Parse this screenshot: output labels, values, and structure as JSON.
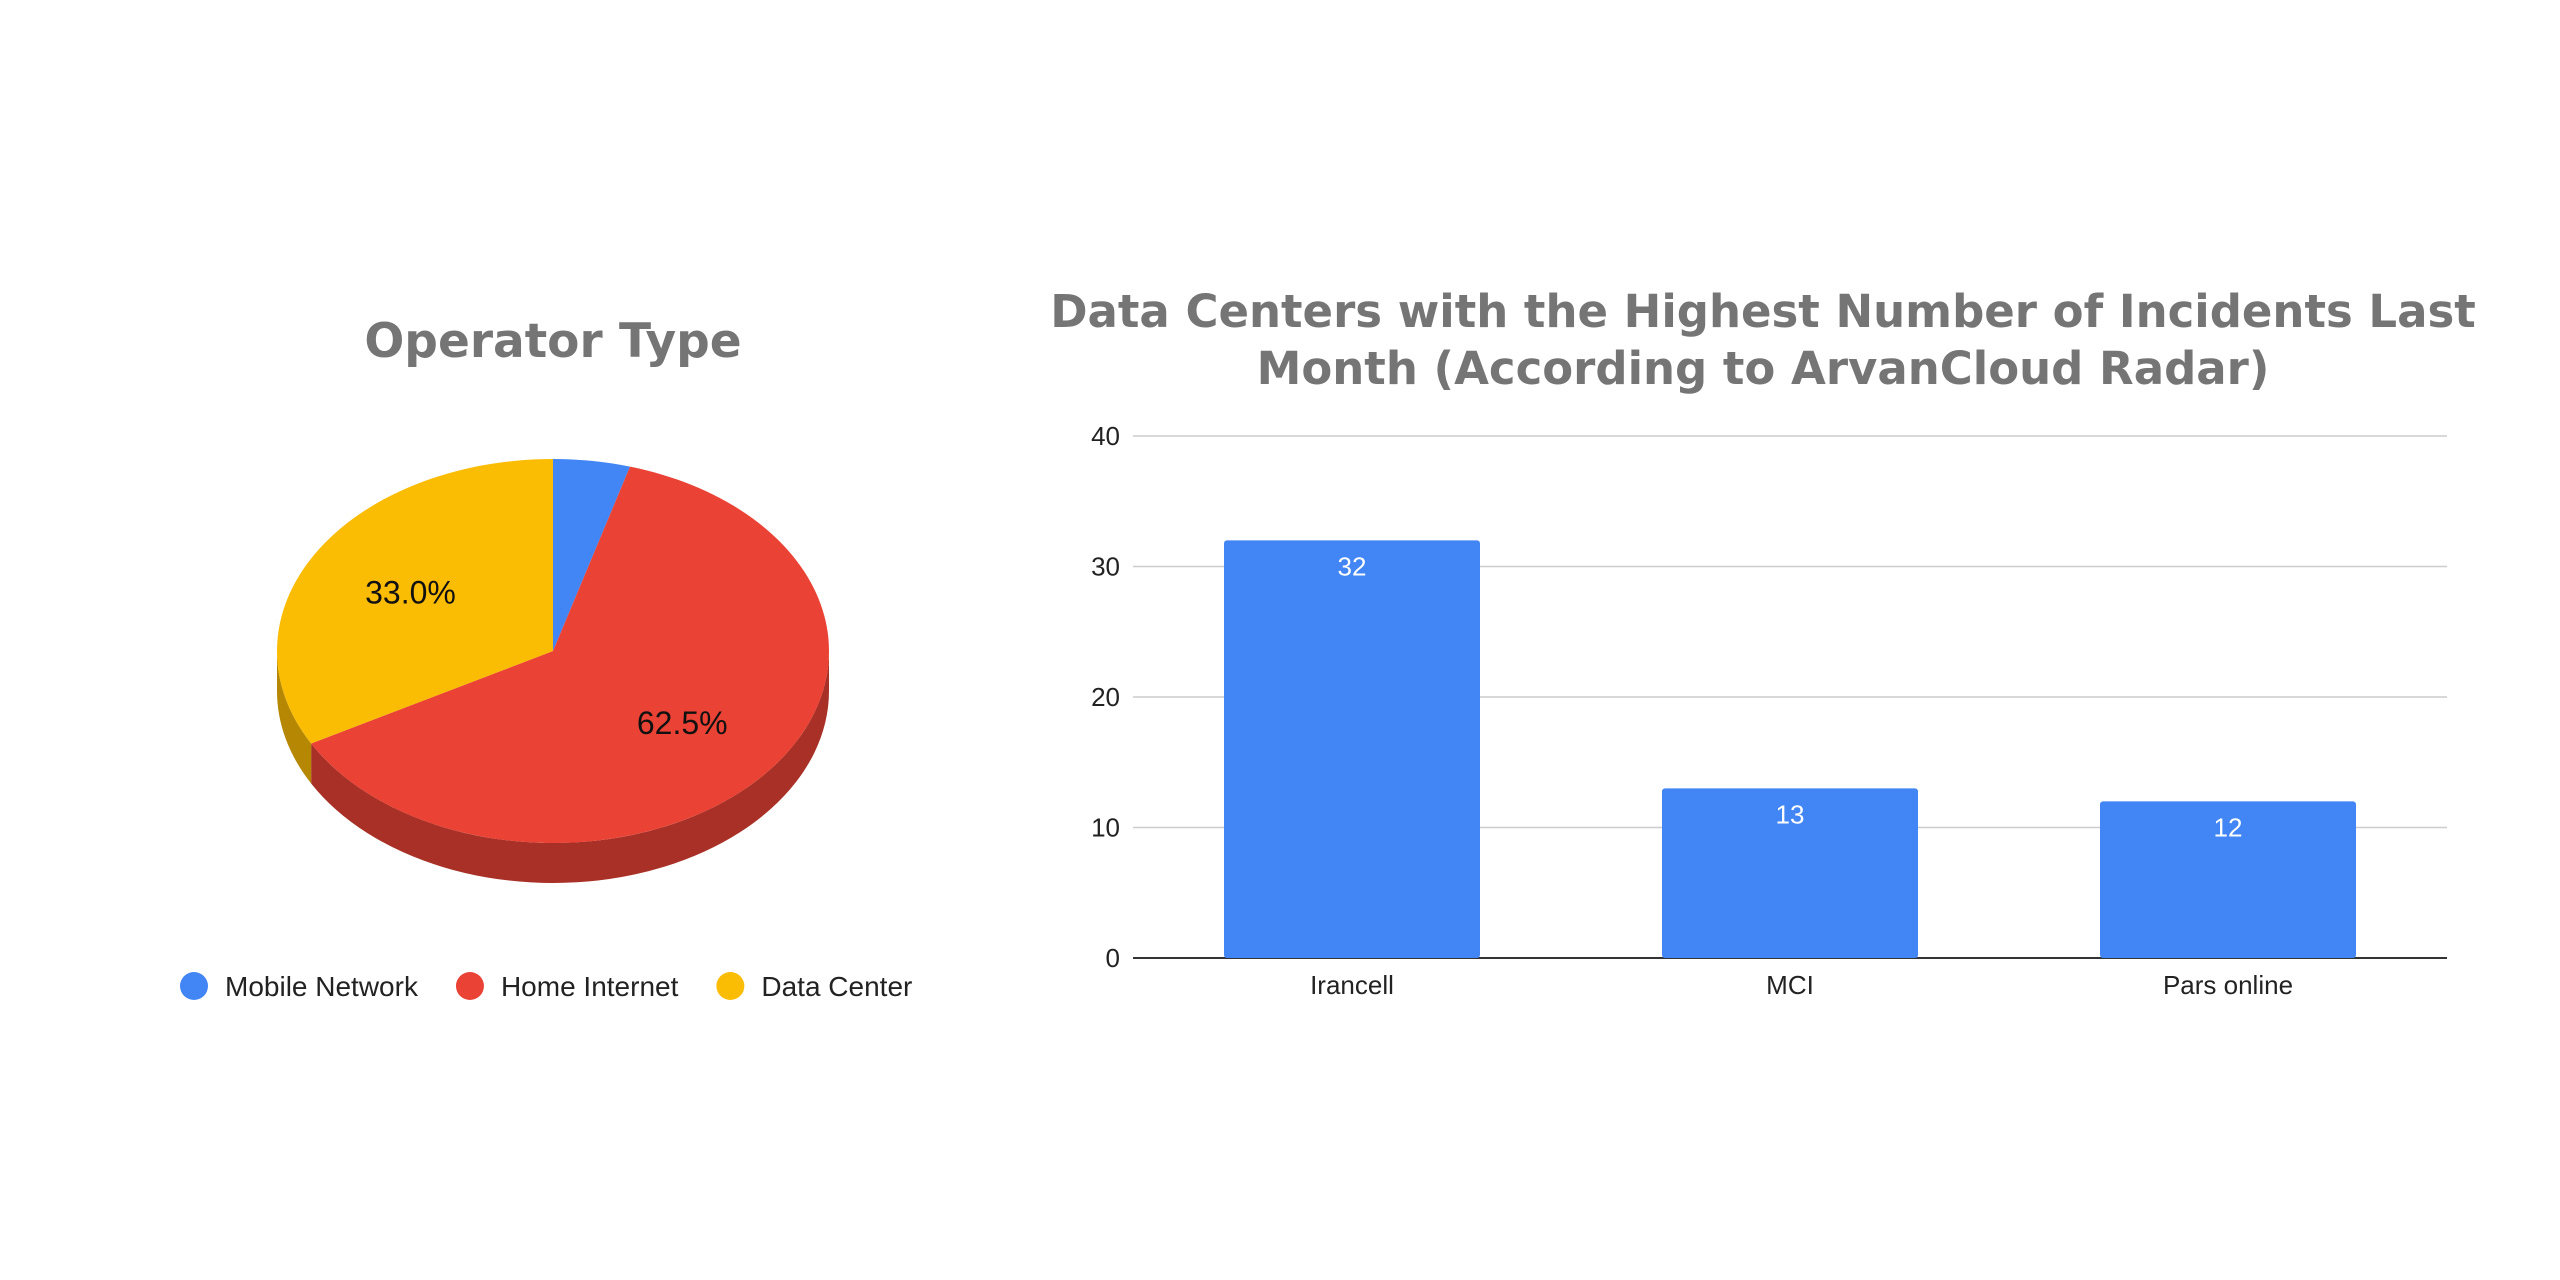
{
  "chart_data": [
    {
      "type": "pie",
      "title": "Operator Type",
      "style": "3d",
      "legend_position": "bottom",
      "slices": [
        {
          "label": "Mobile Network",
          "value": 4.5,
          "color": "#4285f4",
          "data_label": ""
        },
        {
          "label": "Home Internet",
          "value": 62.5,
          "color": "#ea4335",
          "data_label": "62.5%"
        },
        {
          "label": "Data Center",
          "value": 33.0,
          "color": "#fbbc04",
          "data_label": "33.0%"
        }
      ]
    },
    {
      "type": "bar",
      "title": [
        "Data Centers with the Highest Number of Incidents Last",
        "Month (According to ArvanCloud Radar)"
      ],
      "categories": [
        "Irancell",
        "MCI",
        "Pars online"
      ],
      "values": [
        32,
        13,
        12
      ],
      "data_labels": [
        "32",
        "13",
        "12"
      ],
      "ylim": [
        0,
        40
      ],
      "yticks": [
        "0",
        "10",
        "20",
        "30",
        "40"
      ],
      "grid": true,
      "bar_color": "#4285f4"
    }
  ]
}
